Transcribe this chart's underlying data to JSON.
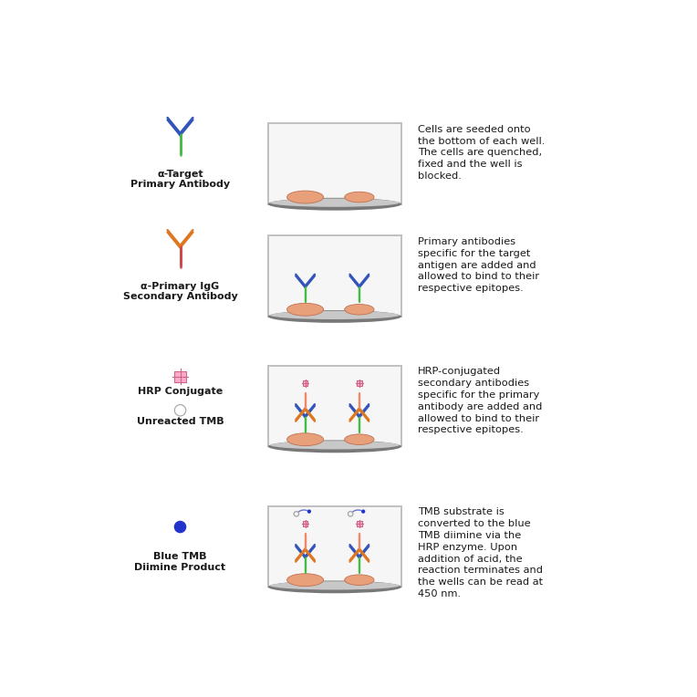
{
  "background_color": "#ffffff",
  "steps": [
    {
      "legend_label": "α-Target\nPrimary Antibody",
      "description": "Cells are seeded onto\nthe bottom of each well.\nThe cells are quenched,\nfixed and the well is\nblocked.",
      "well_content": "cells_only",
      "icon_type": "ab_primary"
    },
    {
      "legend_label": "α-Primary IgG\nSecondary Antibody",
      "description": "Primary antibodies\nspecific for the target\nantigen are added and\nallowed to bind to their\nrespective epitopes.",
      "well_content": "primary_ab",
      "icon_type": "ab_secondary"
    },
    {
      "legend_label": "HRP Conjugate",
      "legend_label2": "Unreacted TMB",
      "description": "HRP-conjugated\nsecondary antibodies\nspecific for the primary\nantibody are added and\nallowed to bind to their\nrespective epitopes.",
      "well_content": "secondary_ab",
      "icon_type": "hrp_tmb"
    },
    {
      "legend_label": "Blue TMB\nDiimine Product",
      "description": "TMB substrate is\nconverted to the blue\nTMB diimine via the\nHRP enzyme. Upon\naddition of acid, the\nreaction terminates and\nthe wells can be read at\n450 nm.",
      "well_content": "tmb_product",
      "icon_type": "blue_tmb"
    }
  ],
  "colors": {
    "cell_fill": "#e8a07a",
    "cell_edge": "#c07050",
    "ab_green": "#44bb44",
    "ab_blue": "#3355bb",
    "ab_orange": "#dd7722",
    "ab_red": "#cc4444",
    "ab_salmon": "#ee8866",
    "hrp_pink": "#cc6688",
    "hrp_fill": "#ffaacc",
    "tmb_blue": "#2233cc",
    "tmb_ring": "#aaaaaa",
    "well_border": "#c8c8c8",
    "well_bg": "#f8f8f8",
    "well_bottom_dark": "#888888",
    "well_bottom_light": "#cccccc",
    "text_color": "#1a1a1a"
  }
}
